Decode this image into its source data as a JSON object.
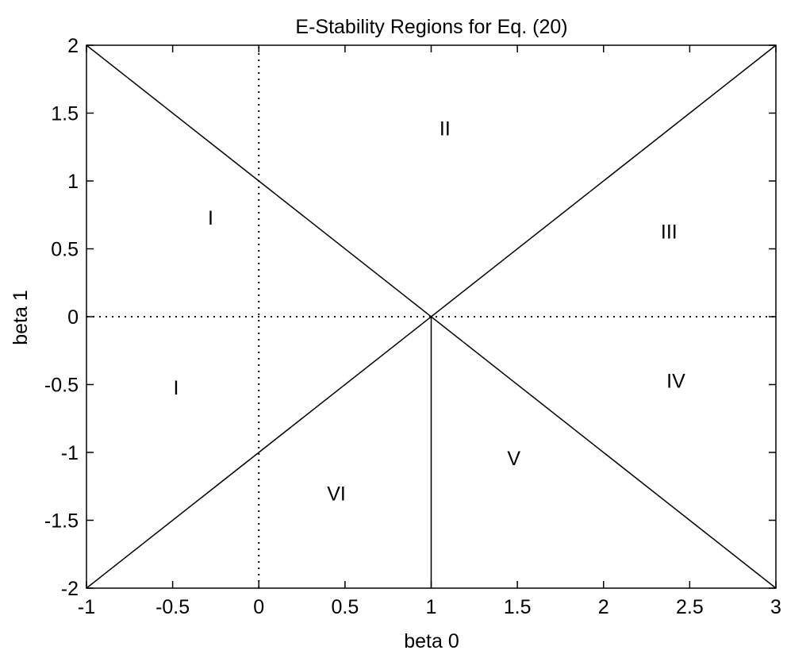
{
  "chart_data": {
    "type": "line",
    "title": "E-Stability Regions for Eq. (20)",
    "xlabel": "beta 0",
    "ylabel": "beta 1",
    "xlim": [
      -1,
      3
    ],
    "ylim": [
      -2,
      2
    ],
    "xticks": [
      -1,
      -0.5,
      0,
      0.5,
      1,
      1.5,
      2,
      2.5,
      3
    ],
    "yticks": [
      -2,
      -1.5,
      -1,
      -0.5,
      0,
      0.5,
      1,
      1.5,
      2
    ],
    "xtick_labels": [
      "-1",
      "-0.5",
      "0",
      "0.5",
      "1",
      "1.5",
      "2",
      "2.5",
      "3"
    ],
    "ytick_labels": [
      "-2",
      "-1.5",
      "-1",
      "-0.5",
      "0",
      "0.5",
      "1",
      "1.5",
      "2"
    ],
    "grid": false,
    "series": [
      {
        "x": [
          -1,
          3
        ],
        "y": [
          -2,
          2
        ],
        "style": "solid"
      },
      {
        "x": [
          -1,
          3
        ],
        "y": [
          2,
          -2
        ],
        "style": "solid"
      },
      {
        "x": [
          1,
          1
        ],
        "y": [
          -2,
          0
        ],
        "style": "solid"
      },
      {
        "x": [
          0,
          0
        ],
        "y": [
          -2,
          2
        ],
        "style": "dotted"
      },
      {
        "x": [
          -1,
          3
        ],
        "y": [
          0,
          0
        ],
        "style": "dotted"
      }
    ],
    "annotations": [
      {
        "text": "I",
        "x": -0.28,
        "y": 0.73
      },
      {
        "text": "II",
        "x": 1.08,
        "y": 1.39
      },
      {
        "text": "III",
        "x": 2.38,
        "y": 0.63
      },
      {
        "text": "I",
        "x": -0.48,
        "y": -0.52
      },
      {
        "text": "IV",
        "x": 2.42,
        "y": -0.47
      },
      {
        "text": "V",
        "x": 1.48,
        "y": -1.04
      },
      {
        "text": "VI",
        "x": 0.45,
        "y": -1.3
      }
    ]
  }
}
